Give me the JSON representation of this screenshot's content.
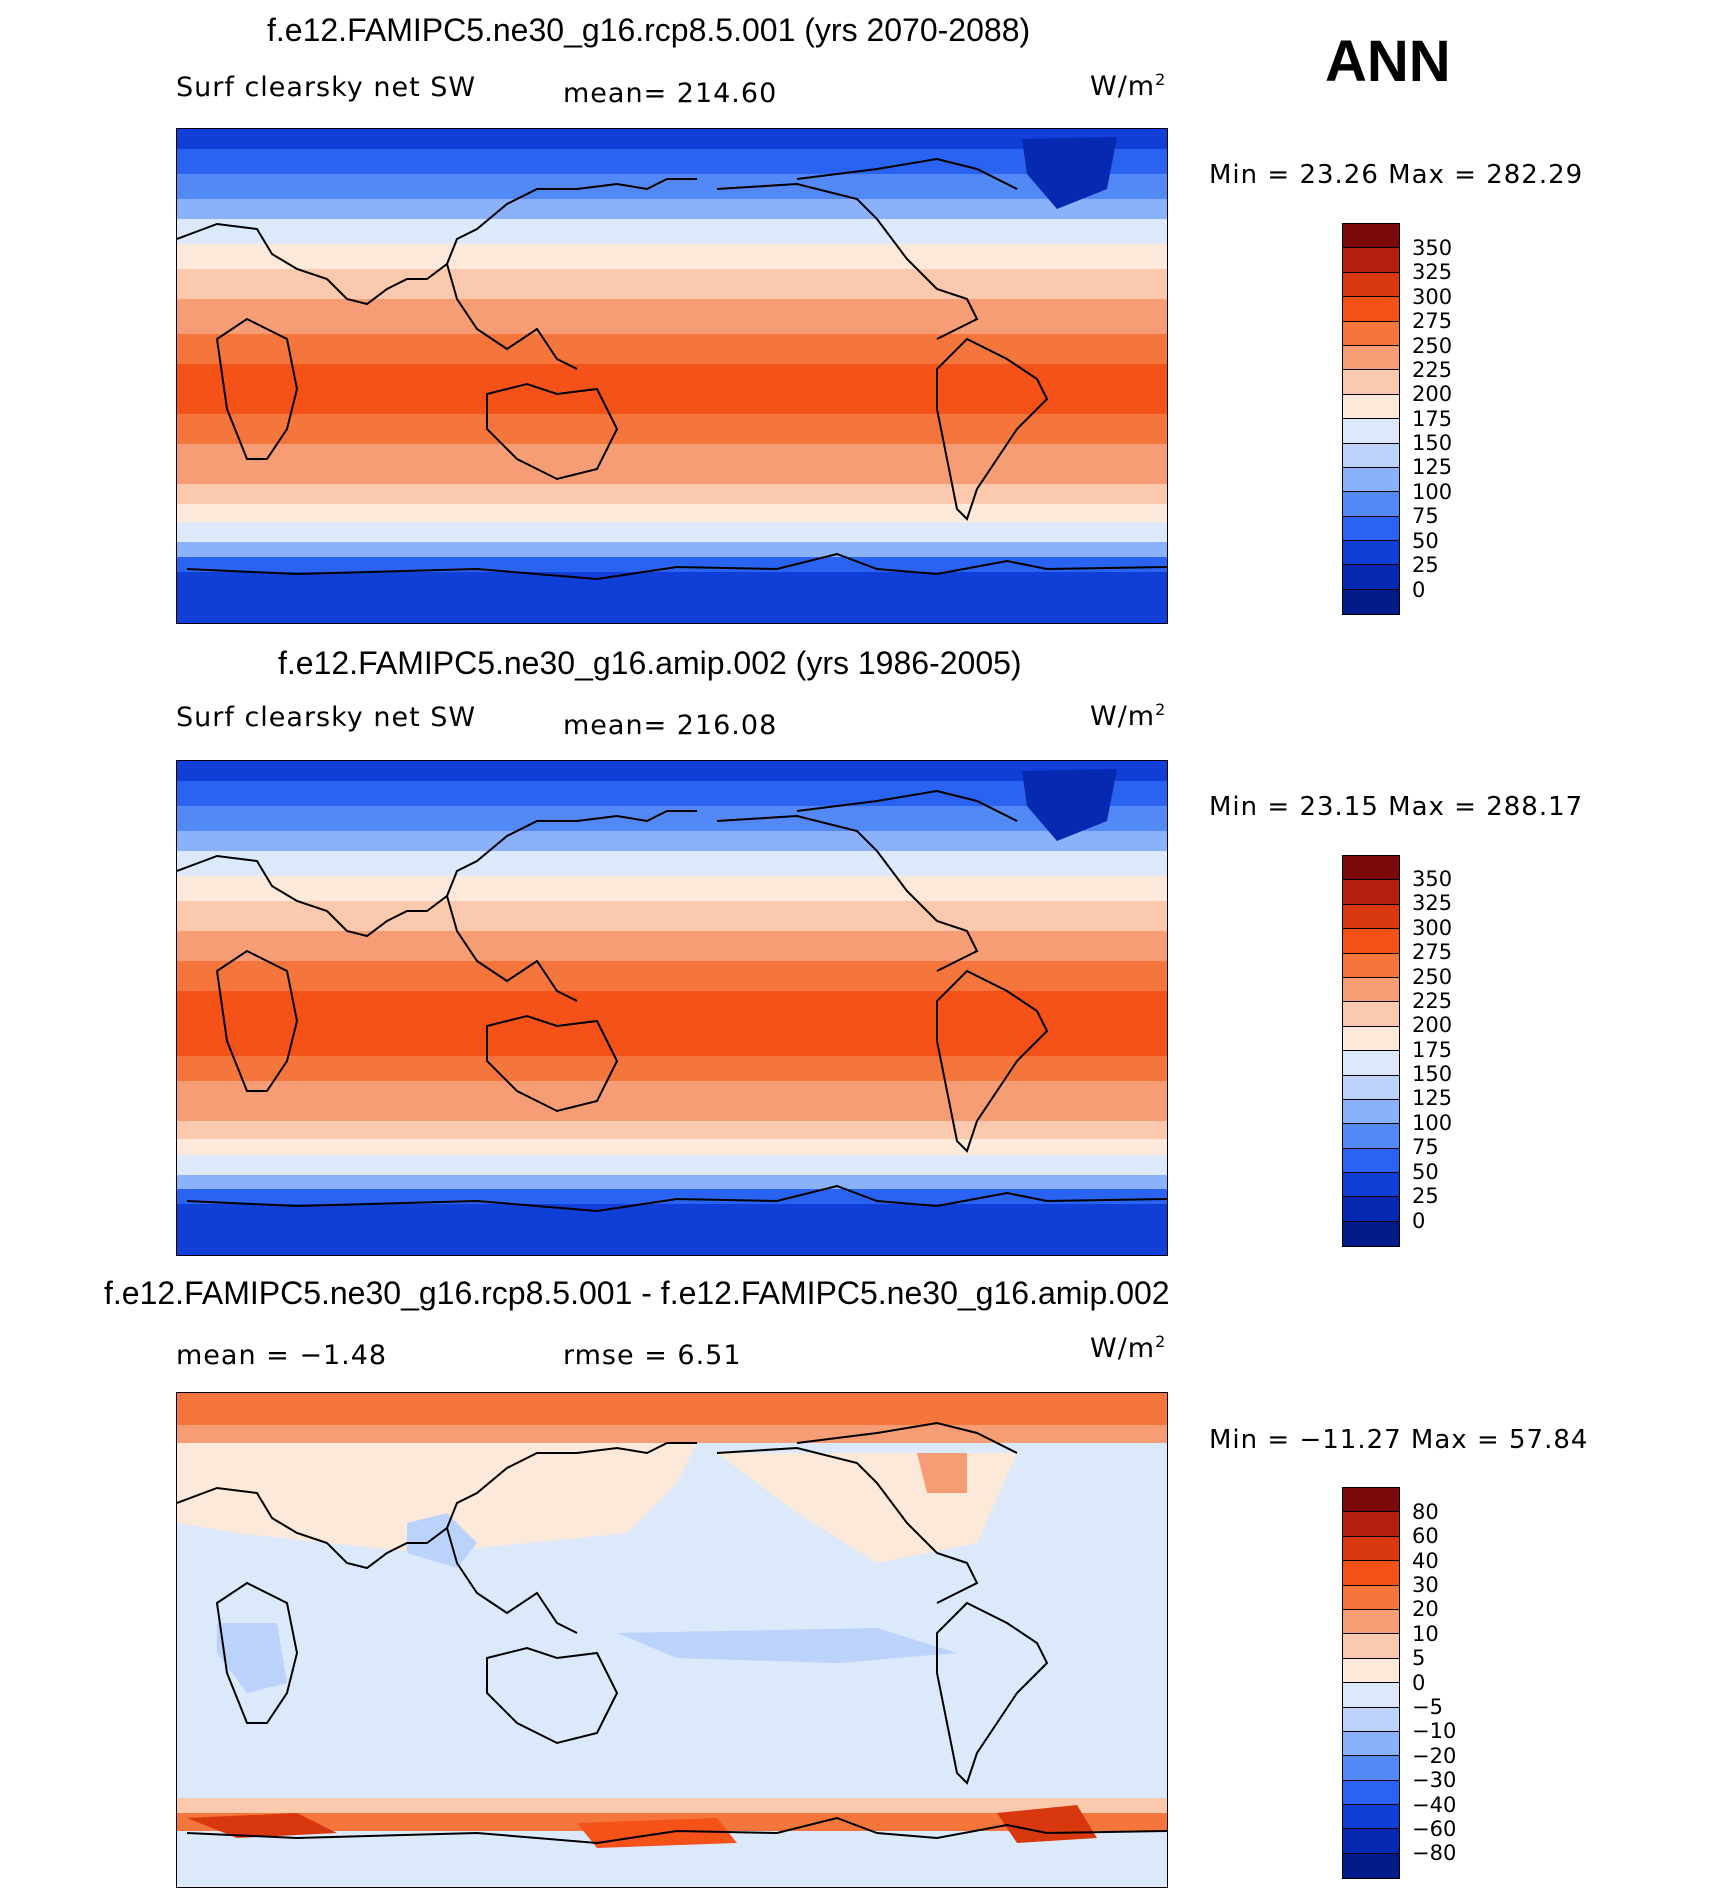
{
  "season": "ANN",
  "units_label": "W/m",
  "units_sup": "2",
  "panels": [
    {
      "title": "f.e12.FAMIPC5.ne30_g16.rcp8.5.001 (yrs 2070-2088)",
      "variable": "Surf clearsky net SW",
      "stat": "mean= 214.60",
      "minmax": "Min =   23.26  Max  =  282.29"
    },
    {
      "title": "f.e12.FAMIPC5.ne30_g16.amip.002 (yrs 1986-2005)",
      "variable": "Surf clearsky net SW",
      "stat": "mean= 216.08",
      "minmax": "Min =   23.15  Max  =  288.17"
    },
    {
      "title": "f.e12.FAMIPC5.ne30_g16.rcp8.5.001 - f.e12.FAMIPC5.ne30_g16.amip.002",
      "stat_left": "mean =   −1.48",
      "stat_mid": "rmse =     6.51",
      "minmax": "Min = −11.27  Max  =   57.84"
    }
  ],
  "colorbar_abs": {
    "labels": [
      "350",
      "325",
      "300",
      "275",
      "250",
      "225",
      "200",
      "175",
      "150",
      "125",
      "100",
      "75",
      "50",
      "25",
      "0"
    ],
    "colors": [
      "#7a0a0a",
      "#b21f0c",
      "#d9380e",
      "#f5521a",
      "#f5763c",
      "#f79d75",
      "#fbc9ad",
      "#fde9da",
      "#dbe9fb",
      "#bbd2fb",
      "#8ab1fa",
      "#5289f7",
      "#2a62f2",
      "#0f3fd6",
      "#0529b0",
      "#031a8a"
    ]
  },
  "colorbar_diff": {
    "labels": [
      "80",
      "60",
      "40",
      "30",
      "20",
      "10",
      "5",
      "0",
      "−5",
      "−10",
      "−20",
      "−30",
      "−40",
      "−60",
      "−80"
    ],
    "colors": [
      "#7a0a0a",
      "#b21f0c",
      "#d9380e",
      "#f5521a",
      "#f5763c",
      "#f79d75",
      "#fbc9ad",
      "#fde9da",
      "#dbe9fb",
      "#bbd2fb",
      "#8ab1fa",
      "#5289f7",
      "#2a62f2",
      "#0f3fd6",
      "#0529b0",
      "#031a8a"
    ]
  }
}
